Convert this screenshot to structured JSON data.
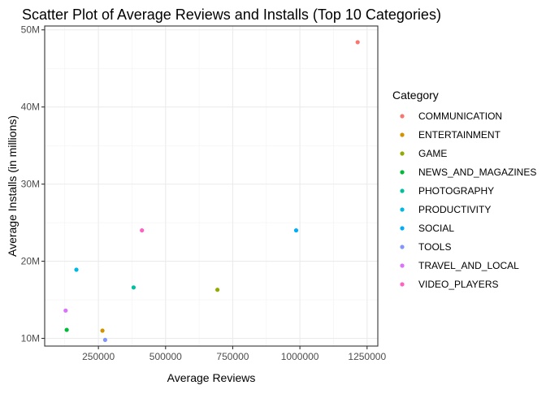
{
  "chart_data": {
    "type": "scatter",
    "title": "Scatter Plot of Average Reviews and Installs (Top 10 Categories)",
    "xlabel": "Average Reviews",
    "ylabel": "Average Installs (in millions)",
    "xlim": [
      50000,
      1290000
    ],
    "ylim": [
      9000000,
      50500000
    ],
    "x_ticks": [
      250000,
      500000,
      750000,
      1000000,
      1250000
    ],
    "x_tick_labels": [
      "250000",
      "500000",
      "750000",
      "1000000",
      "1250000"
    ],
    "y_ticks": [
      10000000,
      20000000,
      30000000,
      40000000,
      50000000
    ],
    "y_tick_labels": [
      "10M",
      "20M",
      "30M",
      "40M",
      "50M"
    ],
    "grid": true,
    "legend": {
      "title": "Category",
      "placement": "right"
    },
    "points": [
      {
        "category": "COMMUNICATION",
        "x": 1215000,
        "y": 48400000,
        "color": "#F8766D"
      },
      {
        "category": "ENTERTAINMENT",
        "x": 265000,
        "y": 11000000,
        "color": "#D39200"
      },
      {
        "category": "GAME",
        "x": 693000,
        "y": 16300000,
        "color": "#93AA00"
      },
      {
        "category": "NEWS_AND_MAGAZINES",
        "x": 132000,
        "y": 11100000,
        "color": "#00BA38"
      },
      {
        "category": "PHOTOGRAPHY",
        "x": 381000,
        "y": 16600000,
        "color": "#00C19F"
      },
      {
        "category": "PRODUCTIVITY",
        "x": 168000,
        "y": 18900000,
        "color": "#00B9E3"
      },
      {
        "category": "SOCIAL",
        "x": 986000,
        "y": 24000000,
        "color": "#00ADFA"
      },
      {
        "category": "TOOLS",
        "x": 275000,
        "y": 9800000,
        "color": "#7F96FF"
      },
      {
        "category": "TRAVEL_AND_LOCAL",
        "x": 128000,
        "y": 13600000,
        "color": "#DB72FB"
      },
      {
        "category": "VIDEO_PLAYERS",
        "x": 412000,
        "y": 24000000,
        "color": "#FF61C3"
      }
    ]
  }
}
